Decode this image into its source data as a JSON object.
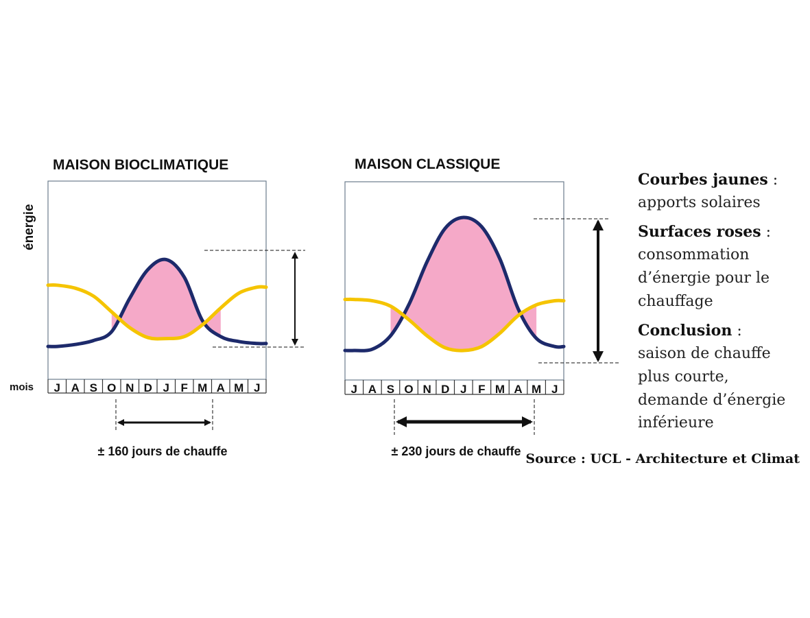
{
  "chart_data": [
    {
      "type": "line",
      "title": "MAISON BIOCLIMATIQUE",
      "ylabel": "énergie",
      "xlabel": "mois",
      "categories": [
        "J",
        "A",
        "S",
        "O",
        "N",
        "D",
        "J",
        "F",
        "M",
        "A",
        "M",
        "J"
      ],
      "ylim": [
        0,
        100
      ],
      "series": [
        {
          "role": "solar",
          "color": "#f5c400",
          "values": [
            64,
            61,
            53,
            37,
            21,
            11,
            10,
            12,
            24,
            41,
            56,
            62
          ]
        },
        {
          "role": "demand",
          "color": "#1d2a6b",
          "values": [
            2,
            4,
            8,
            17,
            51,
            80,
            90,
            72,
            28,
            12,
            7,
            5
          ]
        }
      ],
      "heating_area": {
        "color": "#f5a9c8"
      },
      "heating_days_label": "± 160 jours de chauffe"
    },
    {
      "type": "line",
      "title": "MAISON CLASSIQUE",
      "xlabel": "",
      "categories": [
        "J",
        "A",
        "S",
        "O",
        "N",
        "D",
        "J",
        "F",
        "M",
        "A",
        "M",
        "J"
      ],
      "ylim": [
        0,
        100
      ],
      "series": [
        {
          "role": "solar",
          "color": "#f5c400",
          "values": [
            39,
            38,
            34,
            24,
            12,
            3,
            1,
            4,
            14,
            27,
            35,
            38
          ]
        },
        {
          "role": "demand",
          "color": "#1d2a6b",
          "values": [
            1,
            2,
            12,
            35,
            67,
            92,
            100,
            93,
            69,
            32,
            10,
            4
          ]
        }
      ],
      "heating_area": {
        "color": "#f5a9c8"
      },
      "heating_days_label": "± 230 jours de chauffe"
    }
  ],
  "legend": {
    "yellow_bold": "Courbes jaunes",
    "yellow_sep": " :",
    "yellow_text": "apports solaires",
    "pink_bold": "Surfaces roses",
    "pink_sep": " :",
    "pink_text_1": "consommation",
    "pink_text_2": "d’énergie pour le",
    "pink_text_3": "chauffage",
    "conclusion_bold": "Conclusion",
    "conclusion_sep": " :",
    "conclusion_text_1": "saison de chauffe",
    "conclusion_text_2": "plus courte,",
    "conclusion_text_3": "demande d’énergie",
    "conclusion_text_4": "inférieure"
  },
  "source": "Source : UCL - Architecture et Climat"
}
